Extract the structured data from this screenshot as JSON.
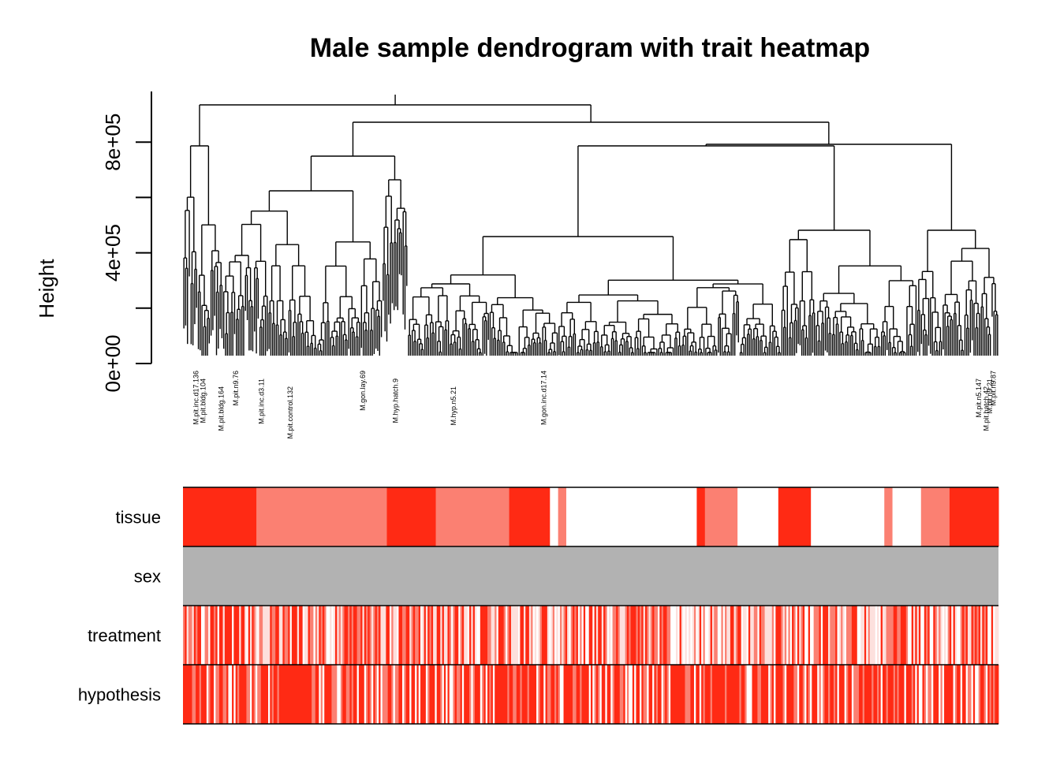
{
  "chart_data": {
    "type": "dendrogram-heatmap",
    "title": "Male sample dendrogram with trait heatmap",
    "ylabel": "Height",
    "ylim": [
      0,
      1000000
    ],
    "y_ticks": [
      {
        "value": 0,
        "label": "0e+00"
      },
      {
        "value": 400000,
        "label": "4e+05"
      },
      {
        "value": 800000,
        "label": "8e+05"
      }
    ],
    "leaf_labels_visible": [
      "M.pit.inc.d17.136",
      "M.pit.bldg.104",
      "M.pit.bldg.164",
      "M.pit.n9.76",
      "M.pit.inc.d3.11",
      "M.pit.control.132",
      "M.gon.lay.69",
      "M.hyp.hatch.9",
      "M.hyp.n5.21",
      "M.gon.inc.d17.14",
      "M.pit.n5.147",
      "M.pit.hatch.42",
      "M.pit.n9.87",
      "M.pit.n9.21"
    ],
    "heatmap_rows": [
      "tissue",
      "sex",
      "treatment",
      "hypothesis"
    ],
    "palette": [
      "#ffffff",
      "#fde0dd",
      "#fb8072",
      "#ff2a14",
      "#b2b2b2"
    ]
  }
}
